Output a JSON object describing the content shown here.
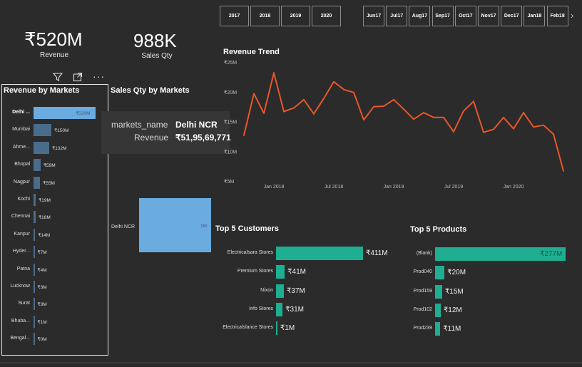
{
  "year_slicer": [
    "2017",
    "2018",
    "2019",
    "2020"
  ],
  "month_slicer": [
    "Jun 17",
    "Jul 17",
    "Aug 17",
    "Sep 17",
    "Oct 17",
    "Nov 17",
    "Dec 17",
    "Jan 18",
    "Feb 18"
  ],
  "month_slicer_split": [
    [
      "Jun",
      "17"
    ],
    [
      "Jul",
      "17"
    ],
    [
      "Aug",
      "17"
    ],
    [
      "Sep",
      "17"
    ],
    [
      "Oct",
      "17"
    ],
    [
      "Nov",
      "17"
    ],
    [
      "Dec",
      "17"
    ],
    [
      "Jan",
      "18"
    ],
    [
      "Feb",
      "18"
    ]
  ],
  "kpis": {
    "revenue_value": "₹520M",
    "revenue_label": "Revenue",
    "qty_value": "988K",
    "qty_label": "Sales Qty"
  },
  "icons": [
    "filter-icon",
    "focus-mode-icon",
    "more-options-icon"
  ],
  "revenue_by_markets": {
    "title": "Revenue by Markets",
    "max": 520,
    "items": [
      {
        "label": "Delhi ...",
        "value": 520,
        "text": "₹520M",
        "highlight": true
      },
      {
        "label": "Mumbai",
        "value": 150,
        "text": "₹150M"
      },
      {
        "label": "Ahme...",
        "value": 132,
        "text": "₹132M"
      },
      {
        "label": "Bhopal",
        "value": 59,
        "text": "₹59M"
      },
      {
        "label": "Nagpur",
        "value": 55,
        "text": "₹55M"
      },
      {
        "label": "Kochi",
        "value": 19,
        "text": "₹19M"
      },
      {
        "label": "Chennai",
        "value": 18,
        "text": "₹18M"
      },
      {
        "label": "Kanpur",
        "value": 14,
        "text": "₹14M"
      },
      {
        "label": "Hyder...",
        "value": 7,
        "text": "₹7M"
      },
      {
        "label": "Patna",
        "value": 4,
        "text": "₹4M"
      },
      {
        "label": "Lucknow",
        "value": 3,
        "text": "₹3M"
      },
      {
        "label": "Surat",
        "value": 3,
        "text": "₹3M"
      },
      {
        "label": "Bhuba...",
        "value": 1,
        "text": "₹1M"
      },
      {
        "label": "Bengal...",
        "value": 0,
        "text": "₹0M"
      }
    ]
  },
  "sales_qty_by_markets": {
    "title": "Sales Qty by Markets",
    "category": "Delhi NCR",
    "value_text": "1M"
  },
  "tooltip": {
    "rows": [
      {
        "key": "markets_name",
        "value": "Delhi NCR"
      },
      {
        "key": "Revenue",
        "value": "₹51,95,69,771"
      }
    ]
  },
  "revenue_trend": {
    "title": "Revenue Trend",
    "y_ticks": [
      "₹25M",
      "₹20M",
      "₹15M",
      "₹10M",
      "₹5M"
    ],
    "x_ticks": [
      "Jan 2018",
      "Jul 2018",
      "Jan 2019",
      "Jul 2019",
      "Jan 2020"
    ]
  },
  "top_customers": {
    "title": "Top 5 Customers",
    "max": 411,
    "items": [
      {
        "label": "Electricalsara Stores",
        "value": 411,
        "text": "₹411M"
      },
      {
        "label": "Premium Stores",
        "value": 41,
        "text": "₹41M"
      },
      {
        "label": "Nixon",
        "value": 37,
        "text": "₹37M"
      },
      {
        "label": "Info Stores",
        "value": 31,
        "text": "₹31M"
      },
      {
        "label": "Electricalslance Stores",
        "value": 1,
        "text": "₹1M"
      }
    ]
  },
  "top_products": {
    "title": "Top 5 Products",
    "max": 277,
    "items": [
      {
        "label": "(Blank)",
        "value": 277,
        "text": "₹277M"
      },
      {
        "label": "Prod040",
        "value": 20,
        "text": "₹20M"
      },
      {
        "label": "Prod159",
        "value": 15,
        "text": "₹15M"
      },
      {
        "label": "Prod102",
        "value": 12,
        "text": "₹12M"
      },
      {
        "label": "Prod239",
        "value": 11,
        "text": "₹11M"
      }
    ]
  },
  "chart_data": [
    {
      "type": "line",
      "title": "Revenue Trend",
      "xlabel": "",
      "ylabel": "",
      "ylim": [
        5,
        25
      ],
      "x": [
        "Oct 2017",
        "Nov 2017",
        "Dec 2017",
        "Jan 2018",
        "Feb 2018",
        "Mar 2018",
        "Apr 2018",
        "May 2018",
        "Jun 2018",
        "Jul 2018",
        "Aug 2018",
        "Sep 2018",
        "Oct 2018",
        "Nov 2018",
        "Dec 2018",
        "Jan 2019",
        "Feb 2019",
        "Mar 2019",
        "Apr 2019",
        "May 2019",
        "Jun 2019",
        "Jul 2019",
        "Aug 2019",
        "Sep 2019",
        "Oct 2019",
        "Nov 2019",
        "Dec 2019",
        "Jan 2020",
        "Feb 2020",
        "Mar 2020",
        "Apr 2020",
        "May 2020",
        "Jun 2020"
      ],
      "series": [
        {
          "values": [
            12.8,
            19.8,
            16.5,
            23.3,
            16.8,
            17.4,
            18.8,
            16.4,
            19.0,
            21.8,
            20.5,
            20.0,
            15.4,
            17.6,
            17.7,
            18.8,
            17.2,
            15.5,
            16.6,
            15.8,
            15.8,
            13.4,
            16.9,
            18.5,
            13.3,
            13.8,
            15.8,
            13.9,
            16.6,
            14.2,
            14.5,
            13.0,
            6.8
          ]
        }
      ],
      "x_ticks": [
        "Jan 2018",
        "Jul 2018",
        "Jan 2019",
        "Jul 2019",
        "Jan 2020"
      ],
      "y_ticks": [
        "₹25M",
        "₹20M",
        "₹15M",
        "₹10M",
        "₹5M"
      ]
    },
    {
      "type": "bar",
      "title": "Revenue by Markets",
      "categories": [
        "Delhi ...",
        "Mumbai",
        "Ahme...",
        "Bhopal",
        "Nagpur",
        "Kochi",
        "Chennai",
        "Kanpur",
        "Hyder...",
        "Patna",
        "Lucknow",
        "Surat",
        "Bhuba...",
        "Bengal..."
      ],
      "values": [
        520,
        150,
        132,
        59,
        55,
        19,
        18,
        14,
        7,
        4,
        3,
        3,
        1,
        0
      ]
    },
    {
      "type": "bar",
      "title": "Top 5 Customers",
      "categories": [
        "Electricalsara Stores",
        "Premium Stores",
        "Nixon",
        "Info Stores",
        "Electricalslance Stores"
      ],
      "values": [
        411,
        41,
        37,
        31,
        1
      ]
    },
    {
      "type": "bar",
      "title": "Top 5 Products",
      "categories": [
        "(Blank)",
        "Prod040",
        "Prod159",
        "Prod102",
        "Prod239"
      ],
      "values": [
        277,
        20,
        15,
        12,
        11
      ]
    }
  ],
  "colors": {
    "background": "#2b2b2b",
    "line": "#e8562a",
    "market_bar": "#4a6c8c",
    "market_bar_highlight": "#6aabe0",
    "top_bar": "#1fae92"
  }
}
